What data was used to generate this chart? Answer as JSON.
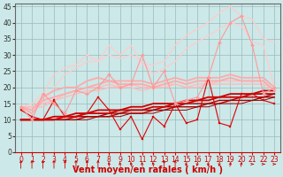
{
  "xlabel": "Vent moyen/en rafales ( km/h )",
  "background_color": "#cce8e8",
  "grid_color": "#99bbbb",
  "x": [
    0,
    1,
    2,
    3,
    4,
    5,
    6,
    7,
    8,
    9,
    10,
    11,
    12,
    13,
    14,
    15,
    16,
    17,
    18,
    19,
    20,
    21,
    22,
    23
  ],
  "lines": [
    {
      "y": [
        13,
        11,
        10,
        16,
        11,
        11,
        12,
        17,
        13,
        7,
        11,
        4,
        11,
        8,
        15,
        9,
        10,
        23,
        9,
        8,
        18,
        18,
        16,
        15
      ],
      "color": "#dd0000",
      "lw": 0.8,
      "marker": "s",
      "ms": 2.0,
      "zorder": 5
    },
    {
      "y": [
        10,
        10,
        10,
        11,
        11,
        12,
        12,
        13,
        13,
        13,
        14,
        14,
        15,
        15,
        15,
        16,
        16,
        17,
        17,
        18,
        18,
        18,
        19,
        19
      ],
      "color": "#cc0000",
      "lw": 1.3,
      "marker": null,
      "ms": 0,
      "zorder": 4
    },
    {
      "y": [
        10,
        10,
        10,
        10,
        11,
        11,
        12,
        12,
        12,
        13,
        13,
        13,
        14,
        14,
        15,
        15,
        16,
        16,
        17,
        17,
        17,
        18,
        18,
        18
      ],
      "color": "#cc0000",
      "lw": 1.3,
      "marker": null,
      "ms": 0,
      "zorder": 4
    },
    {
      "y": [
        10,
        10,
        10,
        10,
        10,
        11,
        11,
        11,
        12,
        12,
        13,
        13,
        13,
        14,
        14,
        15,
        15,
        15,
        16,
        16,
        17,
        17,
        17,
        18
      ],
      "color": "#aa0000",
      "lw": 1.0,
      "marker": null,
      "ms": 0,
      "zorder": 3
    },
    {
      "y": [
        10,
        10,
        10,
        10,
        10,
        10,
        11,
        11,
        11,
        12,
        12,
        12,
        13,
        13,
        14,
        14,
        14,
        15,
        15,
        16,
        16,
        16,
        17,
        17
      ],
      "color": "#aa0000",
      "lw": 1.0,
      "marker": null,
      "ms": 0,
      "zorder": 3
    },
    {
      "y": [
        10,
        10,
        10,
        10,
        10,
        10,
        10,
        11,
        11,
        11,
        12,
        12,
        12,
        13,
        13,
        13,
        14,
        14,
        15,
        15,
        15,
        16,
        16,
        17
      ],
      "color": "#990000",
      "lw": 0.7,
      "marker": null,
      "ms": 0,
      "zorder": 2
    },
    {
      "y": [
        14,
        10,
        18,
        15,
        12,
        19,
        18,
        20,
        24,
        20,
        21,
        30,
        20,
        25,
        15,
        16,
        17,
        23,
        34,
        40,
        42,
        33,
        18,
        20
      ],
      "color": "#ff9999",
      "lw": 0.8,
      "marker": "D",
      "ms": 2.0,
      "zorder": 5
    },
    {
      "y": [
        14,
        13,
        17,
        19,
        20,
        20,
        22,
        23,
        22,
        22,
        22,
        22,
        21,
        22,
        23,
        22,
        23,
        23,
        23,
        24,
        23,
        23,
        23,
        20
      ],
      "color": "#ffaaaa",
      "lw": 1.3,
      "marker": null,
      "ms": 0,
      "zorder": 4
    },
    {
      "y": [
        14,
        12,
        16,
        17,
        18,
        19,
        20,
        21,
        22,
        21,
        21,
        21,
        20,
        21,
        22,
        21,
        22,
        22,
        22,
        23,
        22,
        22,
        22,
        19
      ],
      "color": "#ffaaaa",
      "lw": 1.3,
      "marker": null,
      "ms": 0,
      "zorder": 4
    },
    {
      "y": [
        14,
        14,
        15,
        16,
        18,
        19,
        20,
        20,
        21,
        20,
        21,
        20,
        20,
        21,
        21,
        20,
        21,
        21,
        22,
        22,
        22,
        22,
        22,
        19
      ],
      "color": "#ffbbbb",
      "lw": 1.0,
      "marker": null,
      "ms": 0,
      "zorder": 3
    },
    {
      "y": [
        14,
        14,
        14,
        16,
        17,
        18,
        19,
        19,
        20,
        20,
        20,
        19,
        20,
        20,
        21,
        20,
        20,
        21,
        21,
        21,
        21,
        21,
        21,
        19
      ],
      "color": "#ffbbbb",
      "lw": 1.0,
      "marker": null,
      "ms": 0,
      "zorder": 3
    },
    {
      "y": [
        14,
        14,
        15,
        20,
        24,
        26,
        28,
        28,
        30,
        29,
        30,
        28,
        24,
        26,
        28,
        32,
        34,
        36,
        38,
        40,
        39,
        34,
        33,
        20
      ],
      "color": "#ffcccc",
      "lw": 0.9,
      "marker": null,
      "ms": 0,
      "zorder": 2
    },
    {
      "y": [
        14,
        15,
        18,
        24,
        26,
        27,
        30,
        28,
        33,
        30,
        33,
        27,
        27,
        28,
        33,
        36,
        38,
        40,
        43,
        45,
        42,
        41,
        35,
        34
      ],
      "color": "#ffcccc",
      "lw": 0.9,
      "marker": null,
      "ms": 0,
      "zorder": 2
    }
  ],
  "wind_arrows_x": [
    0,
    1,
    2,
    3,
    4,
    5,
    6,
    7,
    8,
    9,
    10,
    11,
    12,
    13,
    14,
    15,
    16,
    17,
    18,
    19,
    20,
    21,
    22,
    23
  ],
  "wind_angles": [
    0,
    0,
    0,
    0,
    0,
    0,
    0,
    0,
    315,
    315,
    315,
    315,
    315,
    0,
    0,
    225,
    225,
    225,
    225,
    45,
    45,
    90,
    90,
    90
  ],
  "ylim": [
    0,
    46
  ],
  "xlim": [
    -0.5,
    23.5
  ],
  "yticks": [
    0,
    5,
    10,
    15,
    20,
    25,
    30,
    35,
    40,
    45
  ],
  "xticks": [
    0,
    1,
    2,
    3,
    4,
    5,
    6,
    7,
    8,
    9,
    10,
    11,
    12,
    13,
    14,
    15,
    16,
    17,
    18,
    19,
    20,
    21,
    22,
    23
  ],
  "tick_fontsize": 5.5,
  "xlabel_fontsize": 7,
  "xlabel_color": "#cc0000",
  "arrow_color": "#cc0000"
}
